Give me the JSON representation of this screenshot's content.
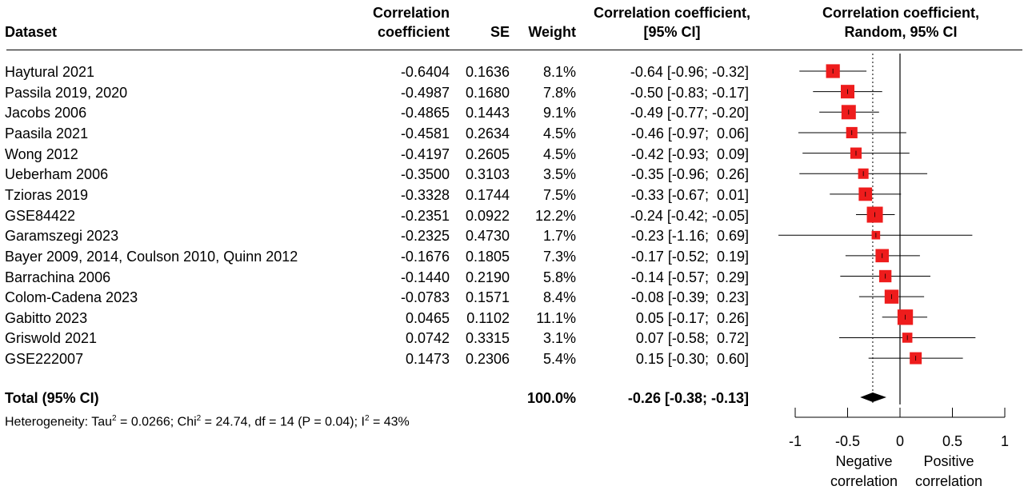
{
  "headers": {
    "dataset": "Dataset",
    "cor_line1": "Correlation",
    "cor_line2": "coefficient",
    "se": "SE",
    "weight": "Weight",
    "ci_line1": "Correlation coefficient,",
    "ci_line2": "[95% CI]",
    "plot_line1": "Correlation coefficient,",
    "plot_line2": "Random, 95% CI"
  },
  "rows": [
    {
      "dataset": "Haytural 2021",
      "cor": "-0.6404",
      "se": "0.1636",
      "weight": "8.1%",
      "ci": "-0.64 [-0.96; -0.32]"
    },
    {
      "dataset": "Passila 2019, 2020",
      "cor": "-0.4987",
      "se": "0.1680",
      "weight": "7.8%",
      "ci": "-0.50 [-0.83; -0.17]"
    },
    {
      "dataset": "Jacobs 2006",
      "cor": "-0.4865",
      "se": "0.1443",
      "weight": "9.1%",
      "ci": "-0.49 [-0.77; -0.20]"
    },
    {
      "dataset": "Paasila 2021",
      "cor": "-0.4581",
      "se": "0.2634",
      "weight": "4.5%",
      "ci": "-0.46 [-0.97;  0.06]"
    },
    {
      "dataset": "Wong 2012",
      "cor": "-0.4197",
      "se": "0.2605",
      "weight": "4.5%",
      "ci": "-0.42 [-0.93;  0.09]"
    },
    {
      "dataset": "Ueberham 2006",
      "cor": "-0.3500",
      "se": "0.3103",
      "weight": "3.5%",
      "ci": "-0.35 [-0.96;  0.26]"
    },
    {
      "dataset": "Tzioras 2019",
      "cor": "-0.3328",
      "se": "0.1744",
      "weight": "7.5%",
      "ci": "-0.33 [-0.67;  0.01]"
    },
    {
      "dataset": "GSE84422",
      "cor": "-0.2351",
      "se": "0.0922",
      "weight": "12.2%",
      "ci": "-0.24 [-0.42; -0.05]"
    },
    {
      "dataset": "Garamszegi 2023",
      "cor": "-0.2325",
      "se": "0.4730",
      "weight": "1.7%",
      "ci": "-0.23 [-1.16;  0.69]"
    },
    {
      "dataset": "Bayer 2009, 2014, Coulson 2010, Quinn 2012",
      "cor": "-0.1676",
      "se": "0.1805",
      "weight": "7.3%",
      "ci": "-0.17 [-0.52;  0.19]"
    },
    {
      "dataset": "Barrachina 2006",
      "cor": "-0.1440",
      "se": "0.2190",
      "weight": "5.8%",
      "ci": "-0.14 [-0.57;  0.29]"
    },
    {
      "dataset": "Colom-Cadena 2023",
      "cor": "-0.0783",
      "se": "0.1571",
      "weight": "8.4%",
      "ci": "-0.08 [-0.39;  0.23]"
    },
    {
      "dataset": "Gabitto 2023",
      "cor": "0.0465",
      "se": "0.1102",
      "weight": "11.1%",
      "ci": " 0.05 [-0.17;  0.26]"
    },
    {
      "dataset": "Griswold 2021",
      "cor": "0.0742",
      "se": "0.3315",
      "weight": "3.1%",
      "ci": " 0.07 [-0.58;  0.72]"
    },
    {
      "dataset": "GSE222007",
      "cor": "0.1473",
      "se": "0.2306",
      "weight": "5.4%",
      "ci": " 0.15 [-0.30;  0.60]"
    }
  ],
  "total": {
    "label": "Total (95% CI)",
    "weight": "100.0%",
    "ci": "-0.26 [-0.38; -0.13]"
  },
  "heterogeneity": {
    "p1": "Heterogeneity: Tau",
    "s1": "2",
    "p2": " = 0.0266; Chi",
    "s2": "2",
    "p3": " = 24.74, df = 14 (P = 0.04); I",
    "s3": "2",
    "p4": " = 43%"
  },
  "axis_labels": {
    "neg1": "Negative",
    "neg2": "correlation",
    "pos1": "Positive",
    "pos2": "correlation"
  },
  "colors": {
    "box": "#ee1c1c",
    "diamond": "#000000",
    "line": "#000000"
  },
  "chart_data": {
    "type": "forest",
    "xlim": [
      -1,
      1
    ],
    "xticks": [
      "-1",
      "-0.5",
      "0",
      "0.5",
      "1"
    ],
    "xtick_values": [
      -1,
      -0.5,
      0,
      0.5,
      1
    ],
    "reference_line": 0,
    "pooled_line": -0.26,
    "studies": [
      {
        "name": "Haytural 2021",
        "est": -0.64,
        "lo": -0.96,
        "hi": -0.32,
        "weight": 8.1
      },
      {
        "name": "Passila 2019, 2020",
        "est": -0.5,
        "lo": -0.83,
        "hi": -0.17,
        "weight": 7.8
      },
      {
        "name": "Jacobs 2006",
        "est": -0.49,
        "lo": -0.77,
        "hi": -0.2,
        "weight": 9.1
      },
      {
        "name": "Paasila 2021",
        "est": -0.46,
        "lo": -0.97,
        "hi": 0.06,
        "weight": 4.5
      },
      {
        "name": "Wong 2012",
        "est": -0.42,
        "lo": -0.93,
        "hi": 0.09,
        "weight": 4.5
      },
      {
        "name": "Ueberham 2006",
        "est": -0.35,
        "lo": -0.96,
        "hi": 0.26,
        "weight": 3.5
      },
      {
        "name": "Tzioras 2019",
        "est": -0.33,
        "lo": -0.67,
        "hi": 0.01,
        "weight": 7.5
      },
      {
        "name": "GSE84422",
        "est": -0.24,
        "lo": -0.42,
        "hi": -0.05,
        "weight": 12.2
      },
      {
        "name": "Garamszegi 2023",
        "est": -0.23,
        "lo": -1.16,
        "hi": 0.69,
        "weight": 1.7
      },
      {
        "name": "Bayer 2009, 2014, Coulson 2010, Quinn 2012",
        "est": -0.17,
        "lo": -0.52,
        "hi": 0.19,
        "weight": 7.3
      },
      {
        "name": "Barrachina 2006",
        "est": -0.14,
        "lo": -0.57,
        "hi": 0.29,
        "weight": 5.8
      },
      {
        "name": "Colom-Cadena 2023",
        "est": -0.08,
        "lo": -0.39,
        "hi": 0.23,
        "weight": 8.4
      },
      {
        "name": "Gabitto 2023",
        "est": 0.05,
        "lo": -0.17,
        "hi": 0.26,
        "weight": 11.1
      },
      {
        "name": "Griswold 2021",
        "est": 0.07,
        "lo": -0.58,
        "hi": 0.72,
        "weight": 3.1
      },
      {
        "name": "GSE222007",
        "est": 0.15,
        "lo": -0.3,
        "hi": 0.6,
        "weight": 5.4
      }
    ],
    "pooled": {
      "est": -0.26,
      "lo": -0.38,
      "hi": -0.13
    }
  }
}
